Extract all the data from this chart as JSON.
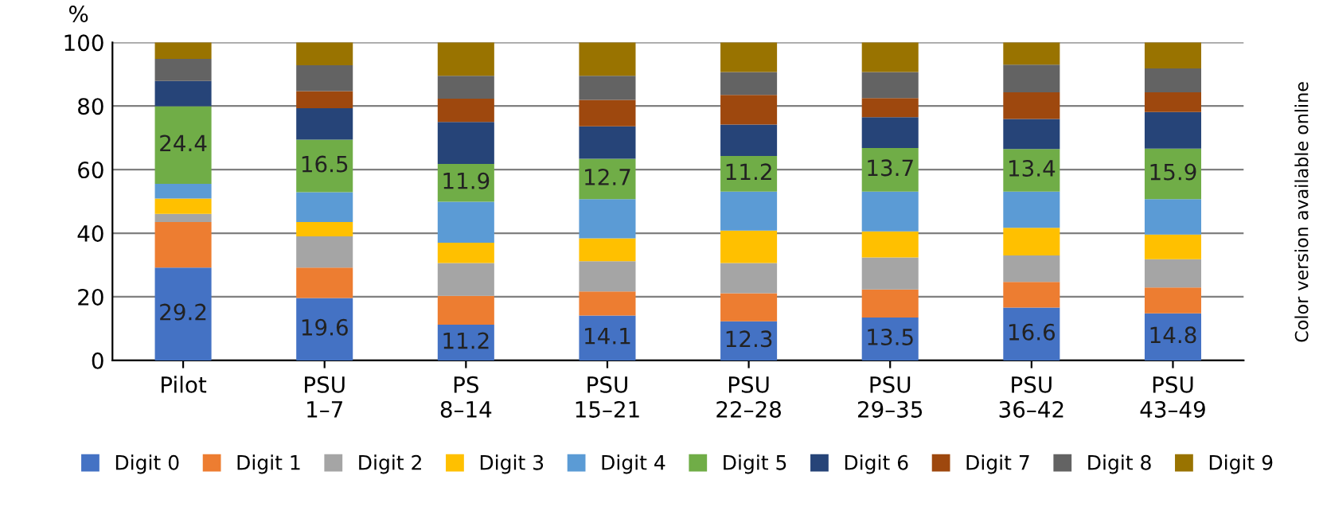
{
  "chart_data": {
    "type": "bar",
    "stacked": true,
    "ylabel": "%",
    "categories": [
      "Pilot",
      "PSU\n1–7",
      "PS\n8–14",
      "PSU\n15–21",
      "PSU\n22–28",
      "PSU\n29–35",
      "PSU\n36–42",
      "PSU\n43–49"
    ],
    "series": [
      {
        "name": "Digit 0",
        "color": "#4472c4",
        "values": [
          29.2,
          19.6,
          11.2,
          14.1,
          12.3,
          13.5,
          16.6,
          14.8
        ],
        "value_labels": [
          "29.2",
          "19.6",
          "11.2",
          "14.1",
          "12.3",
          "13.5",
          "16.6",
          "14.8"
        ]
      },
      {
        "name": "Digit 1",
        "color": "#ed7d31",
        "values": [
          14.3,
          9.6,
          9.1,
          7.6,
          8.8,
          8.8,
          8.1,
          8.1
        ]
      },
      {
        "name": "Digit 2",
        "color": "#a5a5a5",
        "values": [
          2.6,
          9.8,
          10.3,
          9.5,
          9.5,
          10.1,
          8.3,
          8.9
        ]
      },
      {
        "name": "Digit 3",
        "color": "#ffc000",
        "values": [
          4.8,
          4.5,
          6.4,
          7.2,
          10.2,
          8.2,
          8.7,
          7.8
        ]
      },
      {
        "name": "Digit 4",
        "color": "#5b9bd5",
        "values": [
          4.6,
          9.4,
          12.9,
          12.3,
          12.3,
          12.5,
          11.4,
          11.1
        ]
      },
      {
        "name": "Digit 5",
        "color": "#70ad47",
        "values": [
          24.4,
          16.5,
          11.9,
          12.7,
          11.2,
          13.7,
          13.4,
          15.9
        ],
        "value_labels": [
          "24.4",
          "16.5",
          "11.9",
          "12.7",
          "11.2",
          "13.7",
          "13.4",
          "15.9"
        ]
      },
      {
        "name": "Digit 6",
        "color": "#264478",
        "values": [
          8.0,
          9.9,
          13.2,
          10.2,
          9.9,
          9.7,
          9.4,
          11.5
        ]
      },
      {
        "name": "Digit 7",
        "color": "#9e480e",
        "values": [
          0,
          5.4,
          7.3,
          8.3,
          9.3,
          6.0,
          8.4,
          6.2
        ]
      },
      {
        "name": "Digit 8",
        "color": "#636363",
        "values": [
          6.9,
          8.1,
          7.2,
          7.6,
          7.2,
          8.2,
          8.7,
          7.5
        ]
      },
      {
        "name": "Digit 9",
        "color": "#997300",
        "values": [
          5.2,
          7.2,
          10.5,
          10.5,
          9.3,
          9.3,
          7.0,
          8.2
        ]
      }
    ],
    "ylim": [
      0,
      100
    ],
    "yticks": [
      0,
      20,
      40,
      60,
      80,
      100
    ],
    "grid": "y",
    "legend": "bottom",
    "annotations": [
      "Color version available online"
    ]
  }
}
